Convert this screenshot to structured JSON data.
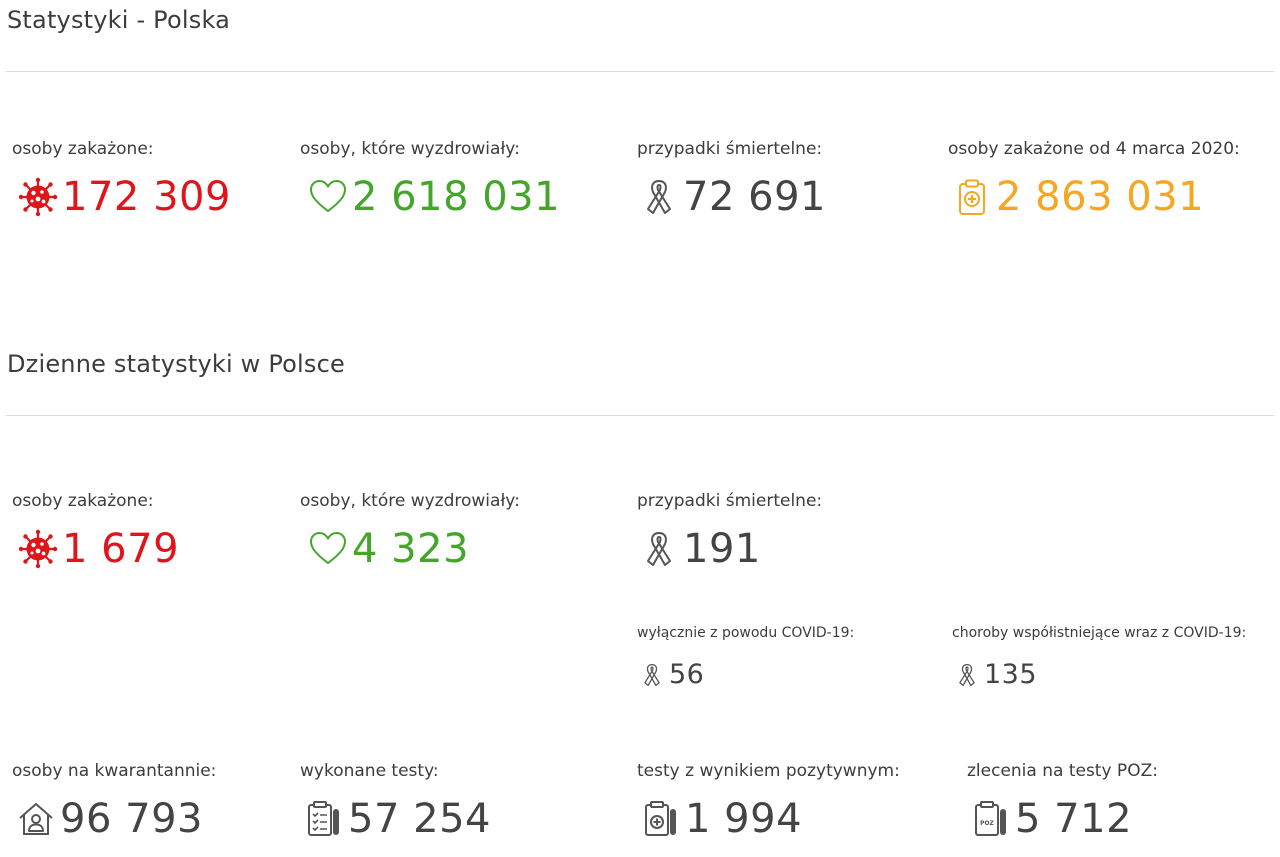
{
  "colors": {
    "infected": "#e0141b",
    "recovered": "#44a629",
    "deaths": "#444444",
    "total": "#f5a623"
  },
  "national": {
    "title": "Statystyki - Polska",
    "infected": {
      "label": "osoby zakażone:",
      "value": "172 309",
      "icon": "virus-icon"
    },
    "recovered": {
      "label": "osoby, które wyzdrowiały:",
      "value": "2 618 031",
      "icon": "heart-icon"
    },
    "deaths": {
      "label": "przypadki śmiertelne:",
      "value": "72 691",
      "icon": "ribbon-icon"
    },
    "total": {
      "label": "osoby zakażone od 4 marca 2020:",
      "value": "2 863 031",
      "icon": "clipboard-cross-icon"
    }
  },
  "daily": {
    "title": "Dzienne statystyki w Polsce",
    "infected": {
      "label": "osoby zakażone:",
      "value": "1 679",
      "icon": "virus-icon"
    },
    "recovered": {
      "label": "osoby, które wyzdrowiały:",
      "value": "4 323",
      "icon": "heart-icon"
    },
    "deaths": {
      "label": "przypadki śmiertelne:",
      "value": "191",
      "icon": "ribbon-icon"
    },
    "deaths_covid_only": {
      "label": "wyłącznie z powodu COVID-19:",
      "value": "56",
      "icon": "ribbon-icon"
    },
    "deaths_comorbid": {
      "label": "choroby współistniejące wraz z COVID-19:",
      "value": "135",
      "icon": "ribbon-icon"
    },
    "quarantine": {
      "label": "osoby na kwarantannie:",
      "value": "96 793",
      "icon": "house-person-icon"
    },
    "tests": {
      "label": "wykonane testy:",
      "value": "57 254",
      "icon": "test-list-icon"
    },
    "positive_tests": {
      "label": "testy z wynikiem pozytywnym:",
      "value": "1 994",
      "icon": "positive-test-icon"
    },
    "poz_orders": {
      "label": "zlecenia na testy POZ:",
      "value": "5 712",
      "icon": "poz-test-icon",
      "icon_text": "POZ"
    }
  }
}
